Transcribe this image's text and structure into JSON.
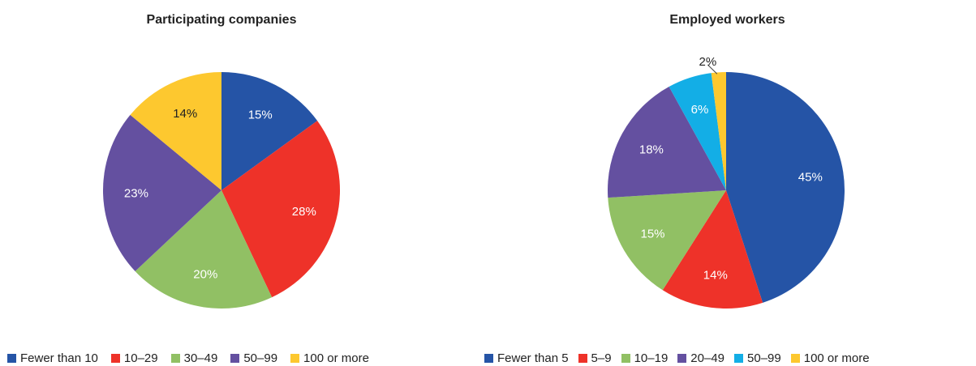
{
  "chart_data": [
    {
      "type": "pie",
      "title": "Participating companies",
      "categories": [
        "Fewer than 10",
        "10–29",
        "30–49",
        "50–99",
        "100 or more"
      ],
      "values": [
        15,
        28,
        20,
        23,
        14
      ],
      "labels": [
        "15%",
        "28%",
        "20%",
        "23%",
        "14%"
      ],
      "colors": [
        "#2554a6",
        "#ee3229",
        "#91c064",
        "#6450a0",
        "#fdc82f"
      ],
      "label_colors": [
        "#ffffff",
        "#ffffff",
        "#ffffff",
        "#ffffff",
        "#222222"
      ],
      "legend_position": "bottom"
    },
    {
      "type": "pie",
      "title": "Employed workers",
      "categories": [
        "Fewer than 5",
        "5–9",
        "10–19",
        "20–49",
        "50–99",
        "100 or more"
      ],
      "values": [
        45,
        14,
        15,
        18,
        6,
        2
      ],
      "labels": [
        "45%",
        "14%",
        "15%",
        "18%",
        "6%",
        "2%"
      ],
      "colors": [
        "#2554a6",
        "#ee3229",
        "#91c064",
        "#6450a0",
        "#13aee6",
        "#fdc82f"
      ],
      "label_colors": [
        "#ffffff",
        "#ffffff",
        "#ffffff",
        "#ffffff",
        "#ffffff",
        "#222222"
      ],
      "legend_position": "bottom"
    }
  ]
}
